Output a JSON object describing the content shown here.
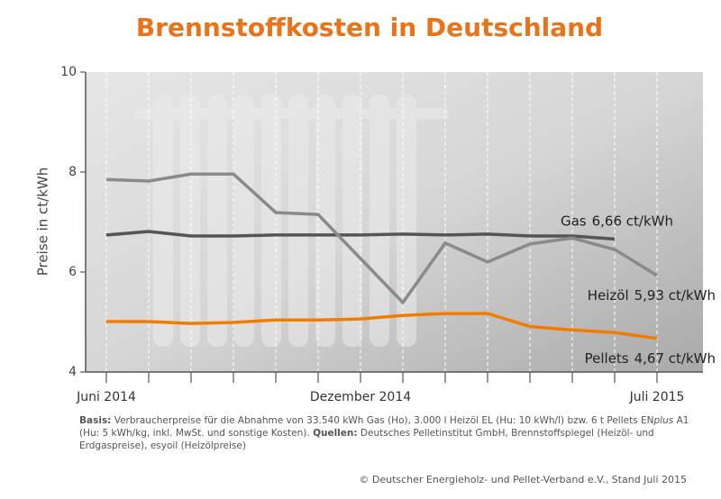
{
  "chart_data": {
    "type": "line",
    "title": "Brennstoffkosten in Deutschland",
    "y_label": "Preise in ct/kWh",
    "categories": [
      "Juni 2014",
      null,
      null,
      null,
      null,
      null,
      "Dezember 2014",
      null,
      null,
      null,
      null,
      null,
      null,
      "Juli 2015"
    ],
    "ylim": [
      4,
      10
    ],
    "yticks": [
      4,
      6,
      8,
      10
    ],
    "grid": true,
    "series": [
      {
        "name": "Gas",
        "color": "#555555",
        "values": [
          6.74,
          6.81,
          6.72,
          6.72,
          6.74,
          6.74,
          6.74,
          6.76,
          6.74,
          6.76,
          6.72,
          6.72,
          6.66,
          null
        ],
        "value_labels": [
          null,
          null,
          null,
          null,
          null,
          null,
          null,
          null,
          null,
          null,
          null,
          null,
          "6,66 ct/kWh",
          null
        ]
      },
      {
        "name": "Heizöl",
        "color": "#8a8a8a",
        "values": [
          7.85,
          7.82,
          7.96,
          7.96,
          7.19,
          7.15,
          6.27,
          5.39,
          6.58,
          6.2,
          6.56,
          6.68,
          6.45,
          5.93
        ],
        "value_labels": [
          null,
          null,
          null,
          null,
          null,
          null,
          null,
          null,
          null,
          null,
          null,
          null,
          null,
          "5,93 ct/kWh"
        ]
      },
      {
        "name": "Pellets",
        "color": "#f07d00",
        "values": [
          5.01,
          5.01,
          4.97,
          4.99,
          5.04,
          5.04,
          5.06,
          5.13,
          5.17,
          5.17,
          4.91,
          4.84,
          4.79,
          4.67
        ],
        "value_labels": [
          null,
          null,
          null,
          null,
          null,
          null,
          null,
          null,
          null,
          null,
          null,
          null,
          null,
          "4,67 ct/kWh"
        ]
      }
    ]
  },
  "footer": {
    "basis_label": "Basis:",
    "basis_text_1": " Verbraucherpreise für die Abnahme von 33.540 kWh Gas (Ho), 3.000 l Heizöl EL (Hu: 10 kWh/l) bzw. 6 t Pellets EN",
    "basis_italic": "plus",
    "basis_text_2": " A1 (Hu: 5 kWh/kg, inkl. MwSt. und sonstige Kosten). ",
    "quellen_label": "Quellen:",
    "quellen_text": " Deutsches Pelletinstitut GmbH, Brennstoffspiegel (Heizöl- und Erdgaspreise), esyoil (Heizölpreise)",
    "copyright": "© Deutscher Energieholz- und Pellet-Verband e.V., Stand Juli 2015"
  }
}
